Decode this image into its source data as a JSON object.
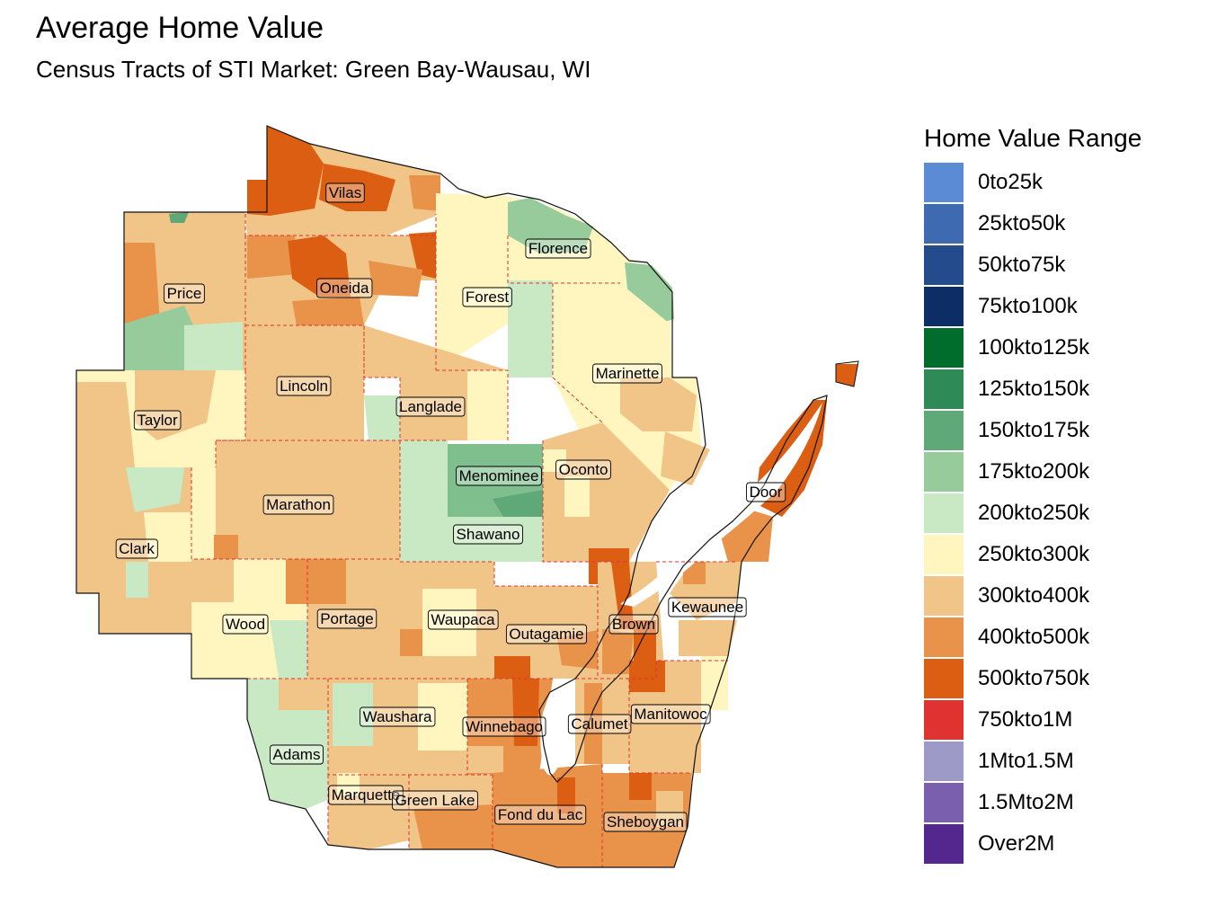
{
  "title": "Average Home Value",
  "subtitle": "Census Tracts of STI Market: Green Bay-Wausau, WI",
  "legend": {
    "title": "Home Value Range",
    "items": [
      {
        "label": "0to25k",
        "color": "#5B8BD4"
      },
      {
        "label": "25kto50k",
        "color": "#3D6AB0"
      },
      {
        "label": "50kto75k",
        "color": "#244C8C"
      },
      {
        "label": "75kto100k",
        "color": "#0C2D65"
      },
      {
        "label": "100kto125k",
        "color": "#006D2C"
      },
      {
        "label": "125kto150k",
        "color": "#2E8B57"
      },
      {
        "label": "150kto175k",
        "color": "#5FA877"
      },
      {
        "label": "175kto200k",
        "color": "#97CB9C"
      },
      {
        "label": "200kto250k",
        "color": "#C9E8C4"
      },
      {
        "label": "250kto300k",
        "color": "#FFF6BF"
      },
      {
        "label": "300kto400k",
        "color": "#F1C487"
      },
      {
        "label": "400kto500k",
        "color": "#E8924A"
      },
      {
        "label": "500kto750k",
        "color": "#DC5E12"
      },
      {
        "label": "750kto1M",
        "color": "#E13232"
      },
      {
        "label": "1Mto1.5M",
        "color": "#9E9AC8"
      },
      {
        "label": "1.5Mto2M",
        "color": "#7B5FAF"
      },
      {
        "label": "Over2M",
        "color": "#54278F"
      }
    ]
  },
  "counties": {
    "vilas": "Vilas",
    "florence": "Florence",
    "price": "Price",
    "oneida": "Oneida",
    "forest": "Forest",
    "marinette": "Marinette",
    "lincoln": "Lincoln",
    "taylor": "Taylor",
    "langlade": "Langlade",
    "menominee": "Menominee",
    "oconto": "Oconto",
    "door": "Door",
    "marathon": "Marathon",
    "shawano": "Shawano",
    "clark": "Clark",
    "kewaunee": "Kewaunee",
    "wood": "Wood",
    "portage": "Portage",
    "waupaca": "Waupaca",
    "outagamie": "Outagamie",
    "brown": "Brown",
    "waushara": "Waushara",
    "winnebago": "Winnebago",
    "calumet": "Calumet",
    "manitowoc": "Manitowoc",
    "adams": "Adams",
    "marquette": "Marquette",
    "green_lake": "Green Lake",
    "fond_du_lac": "Fond du Lac",
    "sheboygan": "Sheboygan"
  }
}
